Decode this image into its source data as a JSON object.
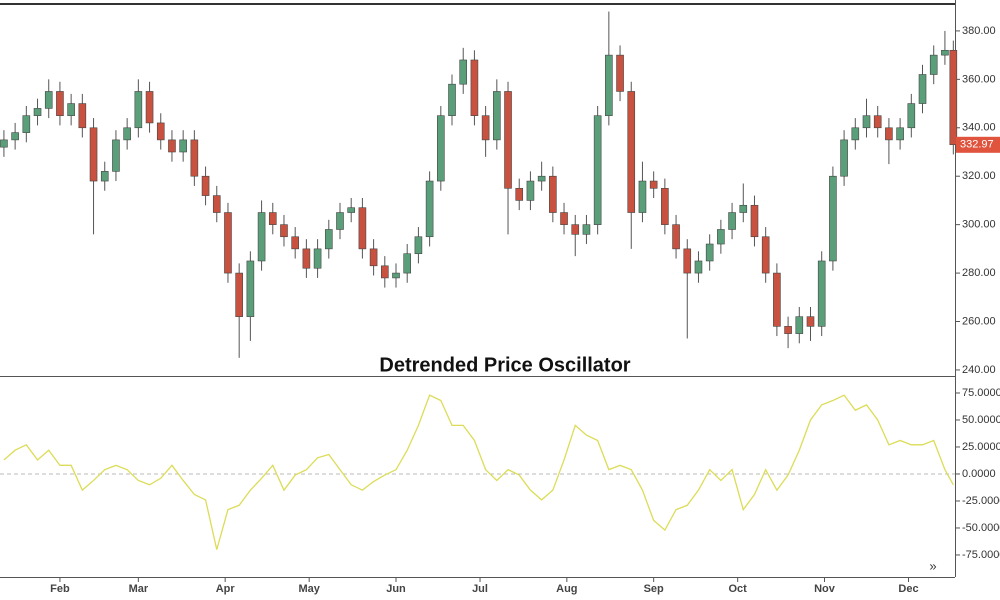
{
  "chart_data": [
    {
      "type": "candlestick",
      "x": [
        12,
        16,
        20,
        24,
        28,
        32,
        36,
        40,
        44,
        48,
        52,
        56,
        60,
        64,
        68,
        72,
        76,
        80,
        84,
        88,
        92,
        96,
        100,
        104,
        108,
        112,
        116,
        120,
        124,
        128,
        132,
        136,
        140,
        144,
        148,
        152,
        156,
        160,
        164,
        168,
        172,
        176,
        180,
        184,
        188,
        192,
        196,
        200,
        204,
        208,
        212,
        216,
        220,
        224,
        228,
        232,
        236,
        240,
        244,
        248,
        252,
        256,
        260,
        264,
        268,
        272,
        276,
        280,
        284,
        288,
        292,
        296,
        300,
        304,
        308,
        312,
        316,
        320,
        324,
        328,
        332,
        336,
        340,
        344,
        348,
        351
      ],
      "open": [
        332,
        335,
        338,
        345,
        348,
        355,
        345,
        350,
        340,
        318,
        322,
        335,
        340,
        355,
        342,
        335,
        330,
        335,
        320,
        312,
        305,
        280,
        262,
        285,
        305,
        300,
        295,
        290,
        282,
        290,
        298,
        305,
        307,
        290,
        283,
        278,
        280,
        288,
        295,
        318,
        345,
        358,
        368,
        345,
        335,
        355,
        315,
        310,
        318,
        320,
        305,
        300,
        296,
        300,
        345,
        370,
        355,
        305,
        318,
        315,
        300,
        290,
        280,
        285,
        292,
        298,
        305,
        308,
        295,
        280,
        258,
        255,
        262,
        258,
        285,
        320,
        335,
        340,
        345,
        340,
        335,
        340,
        350,
        362,
        370,
        372
      ],
      "high": [
        339,
        342,
        349,
        352,
        360,
        359,
        354,
        354,
        344,
        326,
        339,
        344,
        360,
        359,
        346,
        339,
        339,
        339,
        324,
        316,
        309,
        284,
        289,
        310,
        309,
        304,
        299,
        294,
        294,
        302,
        309,
        311,
        311,
        294,
        287,
        284,
        292,
        299,
        322,
        349,
        362,
        373,
        372,
        349,
        360,
        359,
        319,
        322,
        326,
        324,
        309,
        304,
        304,
        349,
        388,
        374,
        359,
        326,
        322,
        319,
        304,
        294,
        289,
        296,
        302,
        309,
        317,
        312,
        299,
        284,
        262,
        266,
        266,
        289,
        324,
        339,
        344,
        352,
        349,
        344,
        344,
        354,
        366,
        374,
        380,
        376
      ],
      "low": [
        328,
        331,
        334,
        341,
        344,
        341,
        341,
        336,
        296,
        314,
        318,
        331,
        336,
        338,
        331,
        326,
        326,
        316,
        308,
        301,
        276,
        245,
        252,
        281,
        296,
        291,
        286,
        278,
        278,
        286,
        294,
        301,
        286,
        279,
        274,
        274,
        276,
        284,
        291,
        314,
        341,
        354,
        341,
        328,
        331,
        296,
        306,
        306,
        314,
        301,
        296,
        287,
        292,
        296,
        341,
        351,
        290,
        301,
        311,
        296,
        286,
        253,
        276,
        281,
        288,
        294,
        301,
        291,
        276,
        254,
        249,
        251,
        252,
        254,
        281,
        316,
        331,
        336,
        336,
        325,
        331,
        336,
        346,
        358,
        366,
        329
      ],
      "close": [
        335,
        338,
        345,
        348,
        355,
        345,
        350,
        340,
        318,
        322,
        335,
        340,
        355,
        342,
        335,
        330,
        335,
        320,
        312,
        305,
        280,
        262,
        285,
        305,
        300,
        295,
        290,
        282,
        290,
        298,
        305,
        307,
        290,
        283,
        278,
        280,
        288,
        295,
        318,
        345,
        358,
        368,
        345,
        335,
        355,
        315,
        310,
        318,
        320,
        305,
        300,
        296,
        300,
        345,
        370,
        355,
        305,
        318,
        315,
        300,
        290,
        280,
        285,
        292,
        298,
        305,
        308,
        295,
        280,
        258,
        255,
        262,
        258,
        285,
        320,
        335,
        340,
        345,
        340,
        335,
        340,
        350,
        362,
        370,
        372,
        333
      ],
      "up_color": "#5b9f7a",
      "down_color": "#c8523f",
      "xlim": [
        10.6,
        351.6
      ],
      "ylim": [
        237.5,
        390.7
      ],
      "yticks": [
        {
          "value": 240,
          "label": "240.00"
        },
        {
          "value": 260,
          "label": "260.00"
        },
        {
          "value": 280,
          "label": "280.00"
        },
        {
          "value": 300,
          "label": "300.00"
        },
        {
          "value": 320,
          "label": "320.00"
        },
        {
          "value": 340,
          "label": "340.00"
        },
        {
          "value": 360,
          "label": "360.00"
        },
        {
          "value": 380,
          "label": "380.00"
        }
      ],
      "last_price": 332.97,
      "last_price_color": "#e0533d"
    },
    {
      "type": "line",
      "title": "Detrended Price Oscillator",
      "x": [
        12,
        16,
        20,
        24,
        28,
        32,
        36,
        40,
        44,
        48,
        52,
        56,
        60,
        64,
        68,
        72,
        76,
        80,
        84,
        88,
        92,
        96,
        100,
        104,
        108,
        112,
        116,
        120,
        124,
        128,
        132,
        136,
        140,
        144,
        148,
        152,
        156,
        160,
        164,
        168,
        172,
        176,
        180,
        184,
        188,
        192,
        196,
        200,
        204,
        208,
        212,
        216,
        220,
        224,
        228,
        232,
        236,
        240,
        244,
        248,
        252,
        256,
        260,
        264,
        268,
        272,
        276,
        280,
        284,
        288,
        292,
        296,
        300,
        304,
        308,
        312,
        316,
        320,
        324,
        328,
        332,
        336,
        340,
        344,
        348,
        351
      ],
      "values": [
        13,
        22,
        27,
        13,
        22,
        8,
        8,
        -15,
        -6,
        4,
        8,
        4,
        -6,
        -10,
        -4,
        8,
        -6,
        -19,
        -24,
        -70,
        -33,
        -29,
        -15,
        -4,
        8,
        -15,
        -1,
        4,
        15,
        18,
        4,
        -10,
        -15,
        -7,
        -1,
        4,
        22,
        45,
        73,
        68,
        45,
        45,
        31,
        4,
        -6,
        4,
        -1,
        -15,
        -24,
        -15,
        13,
        45,
        36,
        31,
        4,
        8,
        4,
        -15,
        -43,
        -52,
        -33,
        -29,
        -15,
        4,
        -6,
        4,
        -33,
        -19,
        4,
        -15,
        -1,
        22,
        50,
        64,
        68,
        73,
        59,
        64,
        50,
        27,
        31,
        27,
        27,
        31,
        4,
        -10
      ],
      "color": "#dcdc58",
      "xlim": [
        10.6,
        351.6
      ],
      "xticks": [
        {
          "value": 32,
          "label": "Feb"
        },
        {
          "value": 60,
          "label": "Mar"
        },
        {
          "value": 91,
          "label": "Apr"
        },
        {
          "value": 121,
          "label": "May"
        },
        {
          "value": 152,
          "label": "Jun"
        },
        {
          "value": 182,
          "label": "Jul"
        },
        {
          "value": 213,
          "label": "Aug"
        },
        {
          "value": 244,
          "label": "Sep"
        },
        {
          "value": 274,
          "label": "Oct"
        },
        {
          "value": 305,
          "label": "Nov"
        },
        {
          "value": 335,
          "label": "Dec"
        }
      ],
      "ylim": [
        -95.4,
        89.8
      ],
      "yticks": [
        {
          "value": 75,
          "label": "75.0000"
        },
        {
          "value": 50,
          "label": "50.0000"
        },
        {
          "value": 25,
          "label": "25.0000"
        },
        {
          "value": 0,
          "label": "0.0000"
        },
        {
          "value": -25,
          "label": "-25.0000"
        },
        {
          "value": -50,
          "label": "-50.0000"
        },
        {
          "value": -75,
          "label": "-75.0000"
        }
      ],
      "zero_line": true
    }
  ],
  "controls": {
    "scroll": "»"
  }
}
